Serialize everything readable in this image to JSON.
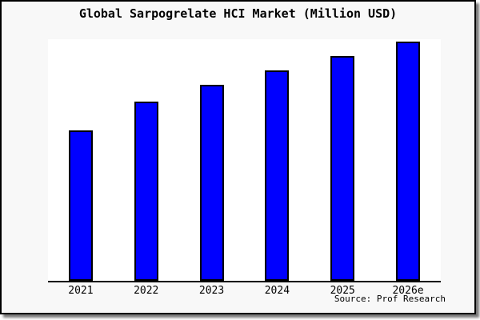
{
  "title": "Global Sarpogrelate HCI Market (Million USD)",
  "source_note": "Source: Prof Research",
  "colors": {
    "bar_fill": "#0000ff",
    "bar_border": "#000000",
    "frame_background": "#f8f8f8",
    "plot_background": "#ffffff",
    "axis": "#000000",
    "text": "#000000"
  },
  "chart_data": {
    "type": "bar",
    "title": "Global Sarpogrelate HCI Market (Million USD)",
    "categories": [
      "2021",
      "2022",
      "2023",
      "2024",
      "2025",
      "2026e"
    ],
    "values": [
      63,
      75,
      82,
      88,
      94,
      100
    ],
    "xlabel": "",
    "ylabel": "",
    "ylim": [
      0,
      101
    ],
    "grid": false,
    "legend": false,
    "y_axis_labels_visible": false,
    "bar_color": "#0000ff",
    "source_label": "Source: Prof Research"
  }
}
